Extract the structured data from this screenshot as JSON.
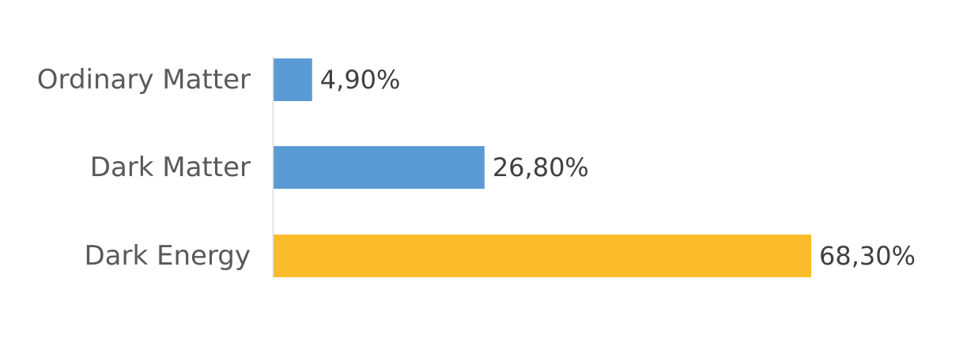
{
  "chart_data": {
    "type": "bar",
    "orientation": "horizontal",
    "categories": [
      "Ordinary Matter",
      "Dark Matter",
      "Dark Energy"
    ],
    "values": [
      4.9,
      26.8,
      68.3
    ],
    "value_labels": [
      "4,90%",
      "26,80%",
      "68,30%"
    ],
    "unit": "%",
    "xlim": [
      0,
      68.3
    ],
    "grid": false,
    "legend": "none",
    "colors": [
      "#5b9bd5",
      "#5b9bd5",
      "#fbbc2c"
    ],
    "axis_color": "#d9d9d9",
    "category_label_color": "#595959",
    "value_label_color": "#404040"
  }
}
